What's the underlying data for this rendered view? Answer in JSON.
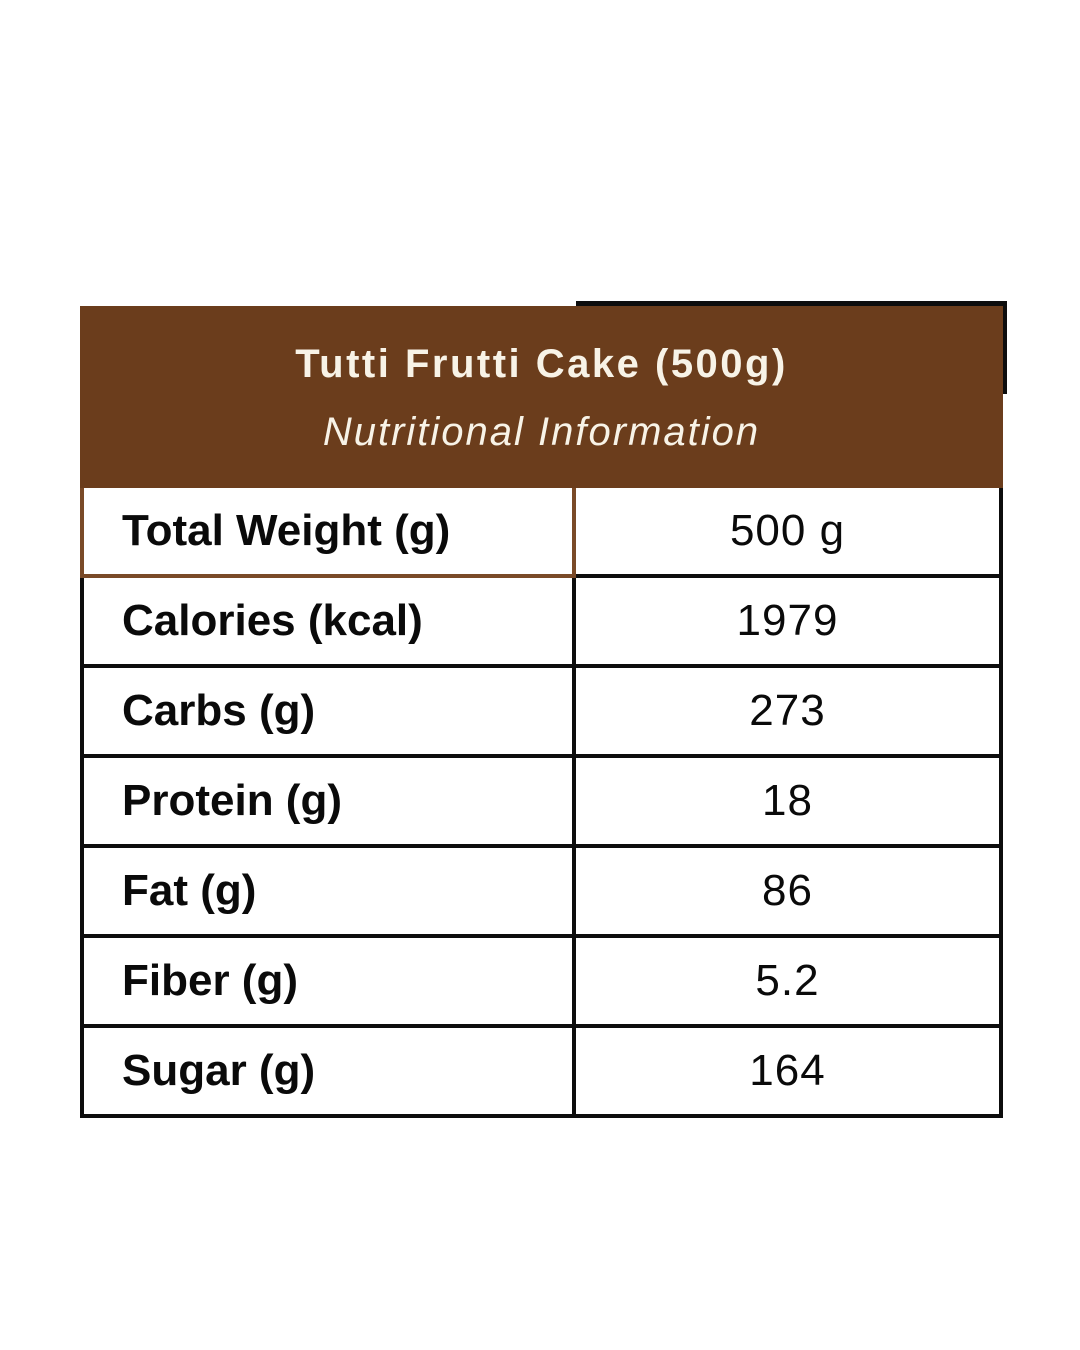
{
  "header": {
    "title": "Tutti Frutti Cake (500g)",
    "subtitle": "Nutritional Information",
    "bg_color": "#6b3d1c",
    "text_color": "#f8f3e7"
  },
  "table": {
    "border_black": "#0d0d0d",
    "border_brown": "#7a4a28",
    "rows": [
      {
        "label": "Total Weight (g)",
        "value": "500 g"
      },
      {
        "label": "Calories (kcal)",
        "value": "1979"
      },
      {
        "label": "Carbs (g)",
        "value": "273"
      },
      {
        "label": "Protein (g)",
        "value": "18"
      },
      {
        "label": "Fat (g)",
        "value": "86"
      },
      {
        "label": "Fiber (g)",
        "value": "5.2"
      },
      {
        "label": "Sugar (g)",
        "value": "164"
      }
    ]
  },
  "colors": {
    "page_bg": "#ffffff",
    "accent_brown": "#6b3d1c",
    "outline_brown": "#7a4a28",
    "outline_black": "#0d0d0d"
  }
}
